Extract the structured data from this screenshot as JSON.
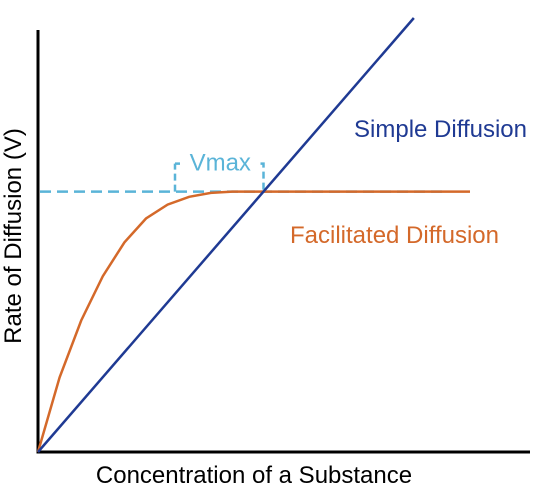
{
  "chart_data": {
    "type": "line",
    "title": "",
    "xlabel": "Concentration of a Substance",
    "ylabel": "Rate of Diffusion (V)",
    "xlim": [
      0,
      1
    ],
    "ylim": [
      0,
      1
    ],
    "grid": false,
    "colors": {
      "axes": "#000000",
      "simple": "#1f3a93",
      "facilitated": "#d4692a",
      "vmax": "#5ab4d8"
    },
    "series": [
      {
        "name": "Simple Diffusion",
        "x": [
          0,
          0.87
        ],
        "y": [
          0,
          1.0
        ]
      },
      {
        "name": "Facilitated Diffusion",
        "x": [
          0,
          0.05,
          0.1,
          0.15,
          0.2,
          0.25,
          0.3,
          0.35,
          0.4,
          0.45,
          0.5,
          0.6,
          0.7,
          0.8,
          0.9,
          1.0
        ],
        "y": [
          0,
          0.172,
          0.303,
          0.405,
          0.483,
          0.538,
          0.57,
          0.588,
          0.597,
          0.6,
          0.6,
          0.6,
          0.6,
          0.6,
          0.6,
          0.6
        ]
      }
    ],
    "annotations": [
      {
        "text": "Vmax",
        "value": 0.6
      }
    ]
  }
}
